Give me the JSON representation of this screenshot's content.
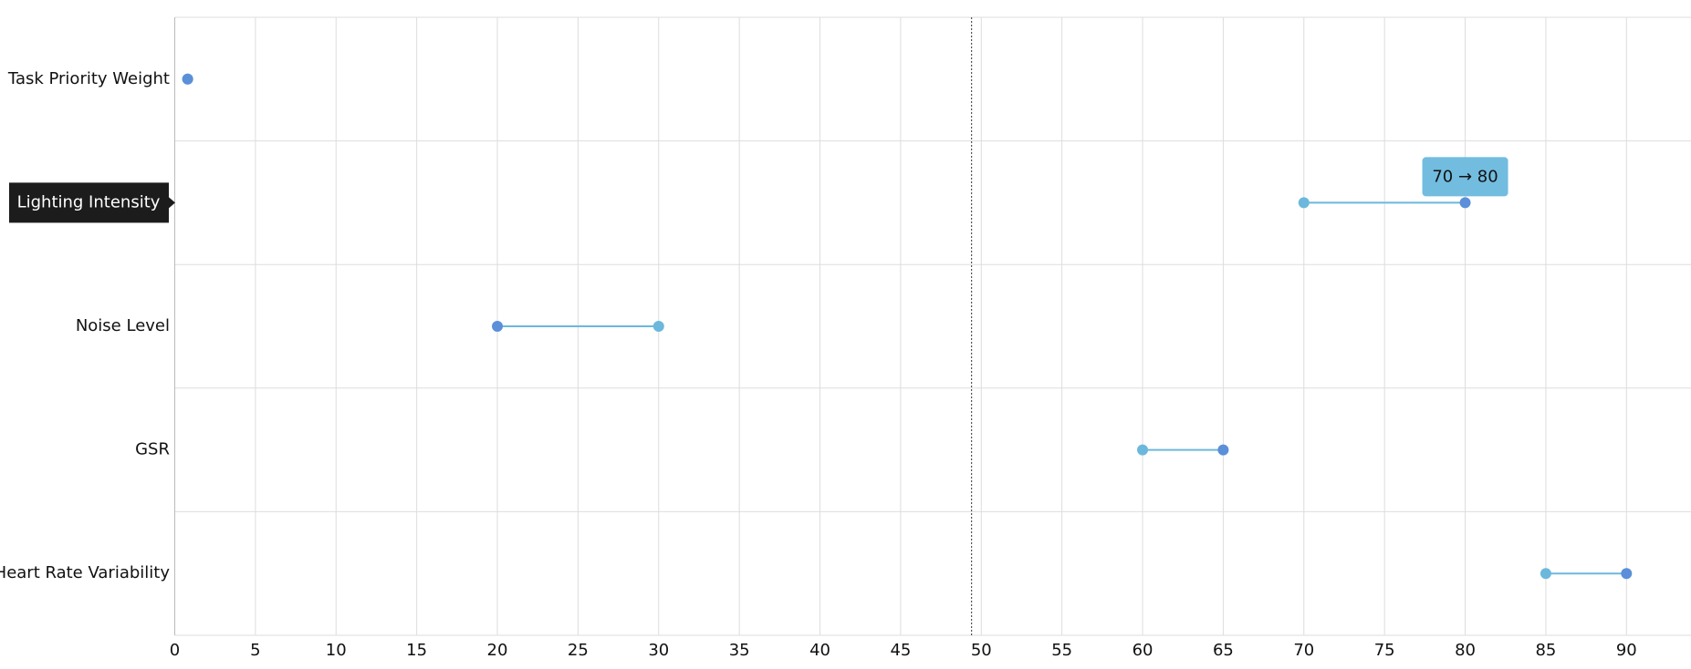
{
  "chart_data": {
    "type": "dumbbell",
    "categories": [
      "Task Priority Weight",
      "Lighting Intensity",
      "Noise Level",
      "GSR",
      "Heart Rate Variability"
    ],
    "series": [
      {
        "color": "#6cb8dc",
        "values": [
          0.8,
          70,
          30,
          60,
          85
        ]
      },
      {
        "color": "#5b8fd9",
        "values": [
          0.8,
          80,
          20,
          65,
          90
        ]
      }
    ],
    "line_color": "#6cb8dc",
    "xlim": [
      0,
      94
    ],
    "xticks": [
      0,
      5,
      10,
      15,
      20,
      25,
      30,
      35,
      40,
      45,
      50,
      55,
      60,
      65,
      70,
      75,
      80,
      85,
      90
    ],
    "grid": true,
    "reference_line": 49.4,
    "highlight_index": 1,
    "tooltip": {
      "category_index": 1,
      "text": "70 → 80"
    }
  }
}
